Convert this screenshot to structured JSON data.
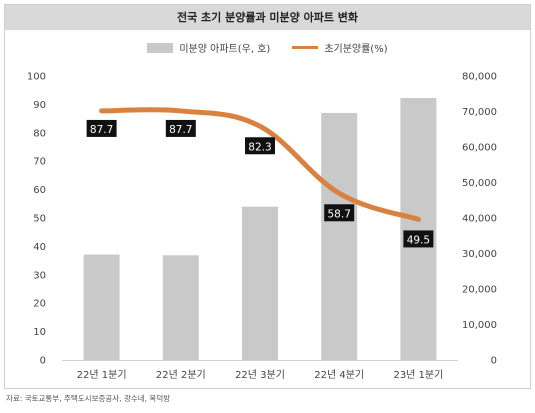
{
  "chart_data": {
    "type": "bar+line",
    "title": "전국 초기 분양률과 미분양 아파트 변화",
    "categories": [
      "22년 1분기",
      "22년 2분기",
      "22년 3분기",
      "22년 4분기",
      "23년 1분기"
    ],
    "series": [
      {
        "name": "미분양 아파트(우, 호)",
        "type": "bar",
        "axis": "right",
        "values": [
          29700,
          29500,
          43200,
          69600,
          73800
        ],
        "color": "#c9c9c9"
      },
      {
        "name": "초기분양률(%)",
        "type": "line",
        "axis": "left",
        "values": [
          87.7,
          87.7,
          82.3,
          58.7,
          49.5
        ],
        "color": "#d9823f"
      }
    ],
    "y_left": {
      "ylim": [
        0,
        100
      ],
      "ticks": [
        "0",
        "10",
        "20",
        "30",
        "40",
        "50",
        "60",
        "70",
        "80",
        "90",
        "100"
      ]
    },
    "y_right": {
      "ylim": [
        0,
        80000
      ],
      "ticks": [
        "0",
        "10,000",
        "20,000",
        "30,000",
        "40,000",
        "50,000",
        "60,000",
        "70,000",
        "80,000"
      ]
    },
    "line_labels": [
      "87.7",
      "87.7",
      "82.3",
      "58.7",
      "49.5"
    ],
    "legend_placement": "top",
    "grid": false,
    "source": "자료: 국토교통부, 주택도시보증공사, 광수네, 복덕방"
  }
}
